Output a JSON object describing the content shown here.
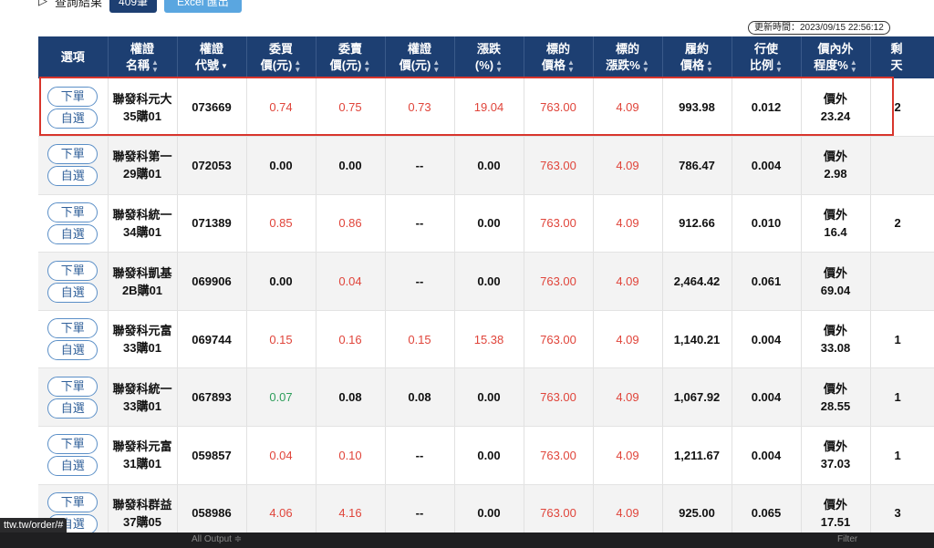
{
  "topbar": {
    "label": "查詢結果",
    "count": "409筆",
    "excel": "Excel 匯出"
  },
  "updated": "更新時間：2023/09/15 22:56:12",
  "headers": {
    "options": "選項",
    "name": [
      "權證",
      "名稱"
    ],
    "code": [
      "權證",
      "代號"
    ],
    "bid": [
      "委買",
      "價(元)"
    ],
    "ask": [
      "委賣",
      "價(元)"
    ],
    "price": [
      "權證",
      "價(元)"
    ],
    "change": [
      "漲跌",
      "(%)"
    ],
    "underlying_price": [
      "標的",
      "價格"
    ],
    "underlying_change": [
      "標的",
      "漲跌%"
    ],
    "strike": [
      "履約",
      "價格"
    ],
    "ratio": [
      "行使",
      "比例"
    ],
    "moneyness": [
      "價內外",
      "程度%"
    ],
    "extra": [
      "剩",
      "天"
    ]
  },
  "buttons": {
    "order": "下單",
    "watch": "自選"
  },
  "rows": [
    {
      "name": [
        "聯發科元大",
        "35購01"
      ],
      "code": "073669",
      "bid": "0.74",
      "ask": "0.75",
      "price": "0.73",
      "change": "19.04",
      "underlying_price": "763.00",
      "underlying_change": "4.09",
      "strike": "993.98",
      "ratio": "0.012",
      "moneyness": [
        "價外",
        "23.24"
      ],
      "extra": "2",
      "colors": {
        "bid": "red",
        "ask": "red",
        "price": "red",
        "change": "red"
      }
    },
    {
      "name": [
        "聯發科第一",
        "29購01"
      ],
      "code": "072053",
      "bid": "0.00",
      "ask": "0.00",
      "price": "--",
      "change": "0.00",
      "underlying_price": "763.00",
      "underlying_change": "4.09",
      "strike": "786.47",
      "ratio": "0.004",
      "moneyness": [
        "價外",
        "2.98"
      ],
      "extra": "",
      "colors": {}
    },
    {
      "name": [
        "聯發科統一",
        "34購01"
      ],
      "code": "071389",
      "bid": "0.85",
      "ask": "0.86",
      "price": "--",
      "change": "0.00",
      "underlying_price": "763.00",
      "underlying_change": "4.09",
      "strike": "912.66",
      "ratio": "0.010",
      "moneyness": [
        "價外",
        "16.4"
      ],
      "extra": "2",
      "colors": {
        "bid": "red",
        "ask": "red"
      }
    },
    {
      "name": [
        "聯發科凱基",
        "2B購01"
      ],
      "code": "069906",
      "bid": "0.00",
      "ask": "0.04",
      "price": "--",
      "change": "0.00",
      "underlying_price": "763.00",
      "underlying_change": "4.09",
      "strike": "2,464.42",
      "ratio": "0.061",
      "moneyness": [
        "價外",
        "69.04"
      ],
      "extra": "",
      "colors": {
        "ask": "red"
      }
    },
    {
      "name": [
        "聯發科元富",
        "33購01"
      ],
      "code": "069744",
      "bid": "0.15",
      "ask": "0.16",
      "price": "0.15",
      "change": "15.38",
      "underlying_price": "763.00",
      "underlying_change": "4.09",
      "strike": "1,140.21",
      "ratio": "0.004",
      "moneyness": [
        "價外",
        "33.08"
      ],
      "extra": "1",
      "colors": {
        "bid": "red",
        "ask": "red",
        "price": "red",
        "change": "red"
      }
    },
    {
      "name": [
        "聯發科統一",
        "33購01"
      ],
      "code": "067893",
      "bid": "0.07",
      "ask": "0.08",
      "price": "0.08",
      "change": "0.00",
      "underlying_price": "763.00",
      "underlying_change": "4.09",
      "strike": "1,067.92",
      "ratio": "0.004",
      "moneyness": [
        "價外",
        "28.55"
      ],
      "extra": "1",
      "colors": {
        "bid": "green"
      }
    },
    {
      "name": [
        "聯發科元富",
        "31購01"
      ],
      "code": "059857",
      "bid": "0.04",
      "ask": "0.10",
      "price": "--",
      "change": "0.00",
      "underlying_price": "763.00",
      "underlying_change": "4.09",
      "strike": "1,211.67",
      "ratio": "0.004",
      "moneyness": [
        "價外",
        "37.03"
      ],
      "extra": "1",
      "colors": {
        "bid": "red",
        "ask": "red"
      }
    },
    {
      "name": [
        "聯發科群益",
        "37購05"
      ],
      "code": "058986",
      "bid": "4.06",
      "ask": "4.16",
      "price": "--",
      "change": "0.00",
      "underlying_price": "763.00",
      "underlying_change": "4.09",
      "strike": "925.00",
      "ratio": "0.065",
      "moneyness": [
        "價外",
        "17.51"
      ],
      "extra": "3",
      "colors": {
        "bid": "red",
        "ask": "red"
      }
    }
  ],
  "statusbar": {
    "url": "ttw.tw/order/#",
    "output": "All Output ≑",
    "filter": "Filter"
  },
  "colors": {
    "header_bg": "#1d3f72",
    "up": "#e0443a",
    "down": "#2e9e5b",
    "highlight": "#d8352c"
  }
}
